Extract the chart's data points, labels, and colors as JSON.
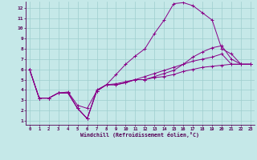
{
  "xlabel": "Windchill (Refroidissement éolien,°C)",
  "bg_color": "#c5e8e8",
  "grid_color": "#9ecece",
  "line_color": "#880088",
  "xlim": [
    -0.4,
    23.4
  ],
  "ylim": [
    0.6,
    12.6
  ],
  "xticks": [
    0,
    1,
    2,
    3,
    4,
    5,
    6,
    7,
    8,
    9,
    10,
    11,
    12,
    13,
    14,
    15,
    16,
    17,
    18,
    19,
    20,
    21,
    22,
    23
  ],
  "yticks": [
    1,
    2,
    3,
    4,
    5,
    6,
    7,
    8,
    9,
    10,
    11,
    12
  ],
  "series": [
    [
      6.0,
      3.2,
      3.2,
      3.7,
      3.7,
      2.2,
      1.2,
      3.9,
      4.5,
      4.5,
      4.7,
      5.0,
      5.0,
      5.2,
      5.3,
      5.5,
      5.8,
      6.0,
      6.2,
      6.3,
      6.4,
      6.5,
      6.5,
      6.5
    ],
    [
      6.0,
      3.2,
      3.2,
      3.7,
      3.7,
      2.2,
      1.2,
      4.0,
      4.5,
      5.5,
      6.5,
      7.3,
      8.0,
      9.5,
      10.8,
      12.4,
      12.5,
      12.2,
      11.5,
      10.8,
      8.0,
      7.5,
      6.5,
      6.5
    ],
    [
      6.0,
      3.2,
      3.2,
      3.7,
      3.8,
      2.5,
      2.2,
      3.9,
      4.5,
      4.6,
      4.8,
      5.0,
      5.3,
      5.6,
      5.9,
      6.2,
      6.5,
      6.8,
      7.0,
      7.2,
      7.5,
      6.5,
      6.5,
      6.5
    ],
    [
      6.0,
      3.2,
      3.2,
      3.7,
      3.7,
      2.2,
      1.2,
      3.9,
      4.5,
      4.5,
      4.7,
      5.0,
      5.0,
      5.3,
      5.6,
      5.9,
      6.5,
      7.2,
      7.7,
      8.1,
      8.3,
      7.0,
      6.5,
      6.5
    ]
  ]
}
